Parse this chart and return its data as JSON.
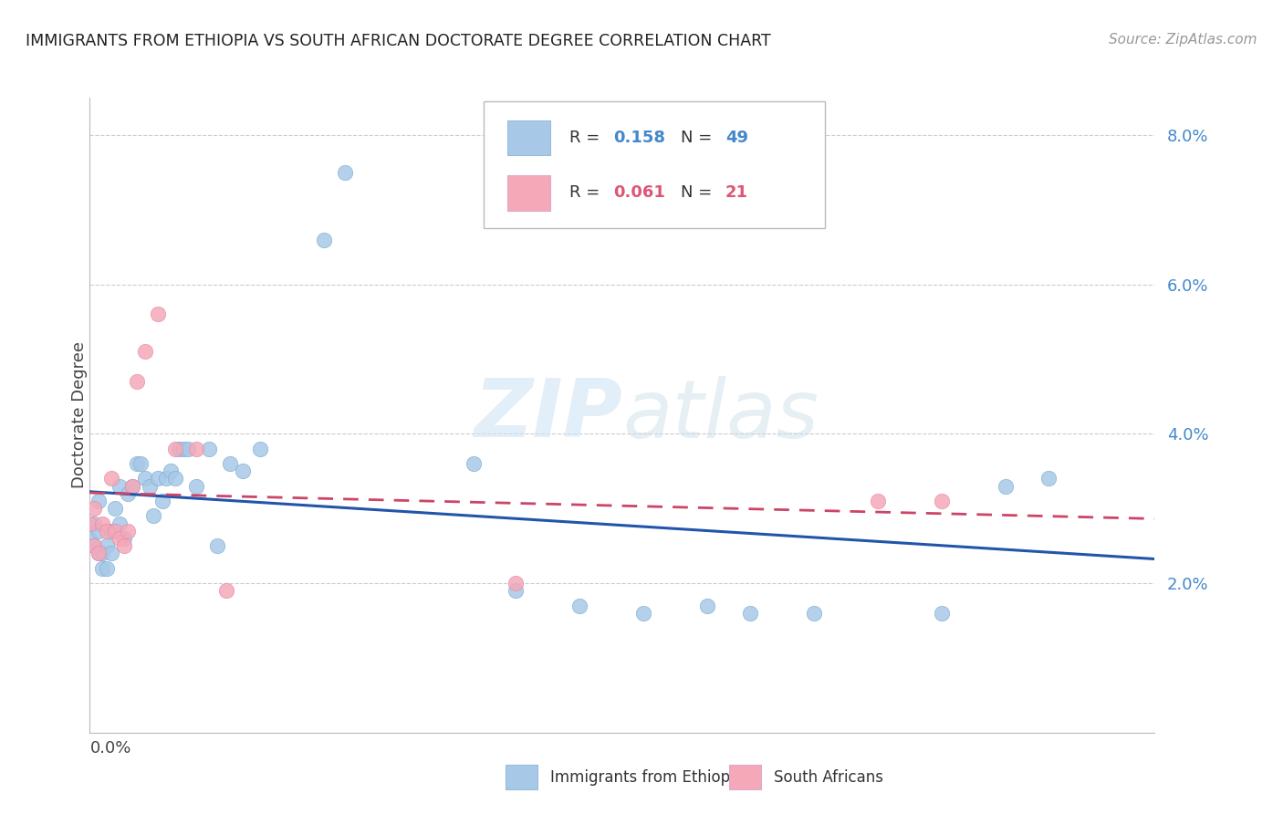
{
  "title": "IMMIGRANTS FROM ETHIOPIA VS SOUTH AFRICAN DOCTORATE DEGREE CORRELATION CHART",
  "source": "Source: ZipAtlas.com",
  "ylabel": "Doctorate Degree",
  "xlim": [
    0.0,
    0.25
  ],
  "ylim": [
    0.0,
    0.085
  ],
  "watermark": "ZIPatlas",
  "r1": "0.158",
  "n1": "49",
  "r2": "0.061",
  "n2": "21",
  "color_blue": "#a8c8e8",
  "color_pink": "#f4a8b8",
  "trendline1_color": "#2255aa",
  "trendline2_color": "#cc4466",
  "label1": "Immigrants from Ethiopia",
  "label2": "South Africans",
  "tick_color": "#4488cc",
  "background_color": "#ffffff",
  "grid_color": "#cccccc",
  "blue_x": [
    0.0,
    0.001,
    0.001,
    0.002,
    0.002,
    0.002,
    0.003,
    0.003,
    0.004,
    0.004,
    0.005,
    0.005,
    0.006,
    0.007,
    0.007,
    0.008,
    0.009,
    0.01,
    0.011,
    0.012,
    0.013,
    0.014,
    0.015,
    0.016,
    0.017,
    0.018,
    0.019,
    0.02,
    0.021,
    0.022,
    0.023,
    0.025,
    0.028,
    0.03,
    0.033,
    0.036,
    0.04,
    0.055,
    0.06,
    0.09,
    0.1,
    0.115,
    0.13,
    0.145,
    0.155,
    0.17,
    0.2,
    0.215,
    0.225
  ],
  "blue_y": [
    0.026,
    0.025,
    0.028,
    0.024,
    0.027,
    0.031,
    0.022,
    0.024,
    0.025,
    0.022,
    0.024,
    0.027,
    0.03,
    0.028,
    0.033,
    0.026,
    0.032,
    0.033,
    0.036,
    0.036,
    0.034,
    0.033,
    0.029,
    0.034,
    0.031,
    0.034,
    0.035,
    0.034,
    0.038,
    0.038,
    0.038,
    0.033,
    0.038,
    0.025,
    0.036,
    0.035,
    0.038,
    0.066,
    0.075,
    0.036,
    0.019,
    0.017,
    0.016,
    0.017,
    0.016,
    0.016,
    0.016,
    0.033,
    0.034
  ],
  "pink_x": [
    0.0,
    0.001,
    0.001,
    0.002,
    0.003,
    0.004,
    0.005,
    0.006,
    0.007,
    0.008,
    0.009,
    0.01,
    0.011,
    0.013,
    0.016,
    0.02,
    0.025,
    0.032,
    0.1,
    0.185,
    0.2
  ],
  "pink_y": [
    0.028,
    0.025,
    0.03,
    0.024,
    0.028,
    0.027,
    0.034,
    0.027,
    0.026,
    0.025,
    0.027,
    0.033,
    0.047,
    0.051,
    0.056,
    0.038,
    0.038,
    0.019,
    0.02,
    0.031,
    0.031
  ]
}
